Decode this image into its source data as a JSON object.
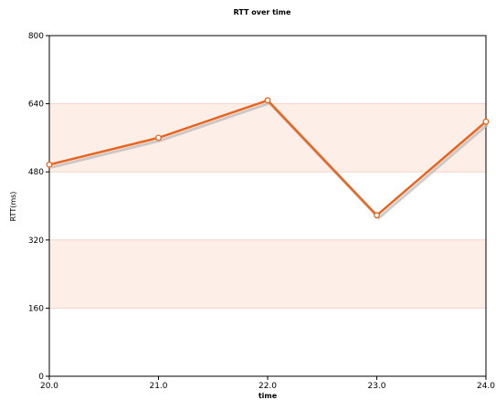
{
  "chart_data": {
    "type": "line",
    "title": "RTT over time",
    "xlabel": "time",
    "ylabel": "RTT(ms)",
    "x": [
      20.0,
      21.0,
      22.0,
      23.0,
      24.0
    ],
    "x_tick_labels": [
      "20.0",
      "21.0",
      "22.0",
      "23.0",
      "24.0"
    ],
    "xlim": [
      20.0,
      24.0
    ],
    "y_tick_values": [
      0,
      160,
      320,
      480,
      640,
      800
    ],
    "y_tick_labels": [
      "0",
      "160",
      "320",
      "480",
      "640",
      "800"
    ],
    "ylim": [
      0,
      800
    ],
    "series": [
      {
        "values": [
          497,
          560,
          648,
          378,
          598
        ]
      }
    ],
    "grid": false,
    "alternating_bands": true,
    "colors": {
      "line": "#e8651f",
      "band": "#fdeee8",
      "band_line": "#f6d3c6"
    }
  }
}
